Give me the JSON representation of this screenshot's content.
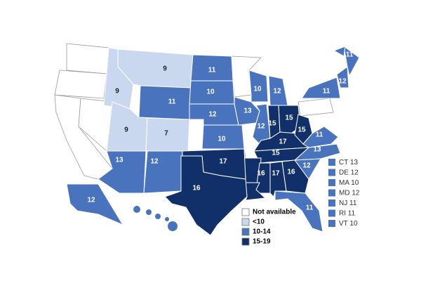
{
  "states": [
    {
      "value": 9,
      "color": "#c9d7ef"
    },
    {
      "value": 9,
      "color": "#c9d7ef"
    },
    {
      "value": 9,
      "color": "#c9d7ef"
    },
    {
      "value": 7,
      "color": "#c9d7ef"
    },
    {
      "value": 11,
      "color": "#4a73bd"
    },
    {
      "value": 11,
      "color": "#4a73bd"
    },
    {
      "value": 10,
      "color": "#4a73bd"
    },
    {
      "value": 12,
      "color": "#4a73bd"
    },
    {
      "value": 10,
      "color": "#4a73bd"
    },
    {
      "value": 10,
      "color": "#4a73bd"
    },
    {
      "value": 13,
      "color": "#4a73bd"
    },
    {
      "value": 12,
      "color": "#4a73bd"
    },
    {
      "value": 12,
      "color": "#4a73bd"
    },
    {
      "value": 15,
      "color": "#11306a"
    },
    {
      "value": 15,
      "color": "#11306a"
    },
    {
      "value": 17,
      "color": "#11306a"
    },
    {
      "value": 15,
      "color": "#11306a"
    },
    {
      "value": 11,
      "color": "#4a73bd"
    },
    {
      "value": 11,
      "color": "#4a73bd"
    },
    {
      "value": 12,
      "color": "#4a73bd"
    },
    {
      "value": 11,
      "color": "#4a73bd"
    },
    {
      "value": 12,
      "color": "#4a73bd"
    },
    {
      "value": 13,
      "color": "#4a73bd"
    },
    {
      "value": 12,
      "color": "#4a73bd"
    },
    {
      "value": 15,
      "color": "#11306a"
    },
    {
      "value": 15,
      "color": "#11306a"
    },
    {
      "value": 16,
      "color": "#11306a"
    },
    {
      "value": 17,
      "color": "#11306a"
    },
    {
      "value": 16,
      "color": "#11306a"
    },
    {
      "value": 16,
      "color": "#11306a"
    },
    {
      "value": 17,
      "color": "#11306a"
    },
    {
      "value": 16,
      "color": "#11306a"
    },
    {
      "value": 13,
      "color": "#4a73bd"
    },
    {
      "value": 11,
      "color": "#4a73bd"
    },
    {
      "value": 12,
      "color": "#4a73bd"
    },
    {
      "value": 12,
      "color": "#4a73bd"
    },
    {
      "value": 13,
      "color": "#4a73bd"
    }
  ],
  "legend": [
    {
      "label": "Not available",
      "color": "#ffffff"
    },
    {
      "label": "<10",
      "color": "#c9d7ef"
    },
    {
      "label": "10-14",
      "color": "#4a73bd"
    },
    {
      "label": "15-19",
      "color": "#11306a"
    }
  ],
  "small_states": [
    {
      "state": "CT",
      "value": 13,
      "color": "#4a73bd"
    },
    {
      "state": "DE",
      "value": 12,
      "color": "#4a73bd"
    },
    {
      "state": "MA",
      "value": 10,
      "color": "#4a73bd"
    },
    {
      "state": "MD",
      "value": 12,
      "color": "#4a73bd"
    },
    {
      "state": "NJ",
      "value": 11,
      "color": "#4a73bd"
    },
    {
      "state": "RI",
      "value": 11,
      "color": "#4a73bd"
    },
    {
      "state": "VT",
      "value": 10,
      "color": "#4a73bd"
    }
  ]
}
